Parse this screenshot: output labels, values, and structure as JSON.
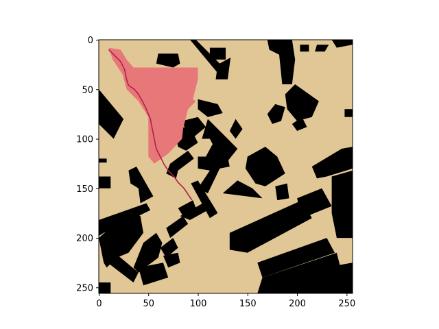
{
  "chart_data": {
    "type": "heatmap",
    "title": "",
    "xlabel": "",
    "ylabel": "",
    "xlim": [
      0,
      256
    ],
    "ylim": [
      256,
      0
    ],
    "x_ticks": [
      0,
      50,
      100,
      150,
      200,
      250
    ],
    "y_ticks": [
      0,
      50,
      100,
      150,
      200,
      250
    ],
    "grid": false,
    "legend": "none",
    "colors": {
      "free_space": "#e2c796",
      "obstacle": "#000000",
      "explored": "#e8777a",
      "path": "#b01e4a"
    },
    "obstacles": [
      {
        "label": "building",
        "cells": [
          [
            112,
            8
          ],
          [
            128,
            8
          ],
          [
            128,
            20
          ],
          [
            112,
            20
          ]
        ]
      },
      {
        "label": "building",
        "cells": [
          [
            133,
            18
          ],
          [
            130,
            40
          ],
          [
            118,
            40
          ],
          [
            120,
            25
          ]
        ]
      },
      {
        "label": "building",
        "cells": [
          [
            60,
            14
          ],
          [
            80,
            14
          ],
          [
            82,
            24
          ],
          [
            75,
            28
          ],
          [
            58,
            24
          ]
        ]
      },
      {
        "label": "building",
        "cells": [
          [
            92,
            0
          ],
          [
            98,
            0
          ],
          [
            126,
            28
          ],
          [
            122,
            36
          ]
        ]
      },
      {
        "label": "building",
        "cells": [
          [
            0,
            50
          ],
          [
            25,
            80
          ],
          [
            15,
            100
          ],
          [
            0,
            85
          ]
        ]
      },
      {
        "label": "building",
        "cells": [
          [
            0,
            138
          ],
          [
            12,
            138
          ],
          [
            12,
            150
          ],
          [
            0,
            150
          ]
        ]
      },
      {
        "label": "building",
        "cells": [
          [
            30,
            132
          ],
          [
            38,
            128
          ],
          [
            55,
            158
          ],
          [
            42,
            165
          ],
          [
            40,
            150
          ],
          [
            32,
            145
          ]
        ]
      },
      {
        "label": "building",
        "cells": [
          [
            0,
            120
          ],
          [
            8,
            120
          ],
          [
            8,
            124
          ],
          [
            0,
            124
          ]
        ]
      },
      {
        "label": "building",
        "cells": [
          [
            0,
            182
          ],
          [
            48,
            165
          ],
          [
            52,
            172
          ],
          [
            5,
            195
          ],
          [
            0,
            198
          ]
        ]
      },
      {
        "label": "building",
        "cells": [
          [
            0,
            200
          ],
          [
            32,
            172
          ],
          [
            42,
            178
          ],
          [
            45,
            195
          ],
          [
            30,
            215
          ],
          [
            18,
            220
          ],
          [
            8,
            230
          ],
          [
            5,
            225
          ]
        ]
      },
      {
        "label": "building",
        "cells": [
          [
            10,
            210
          ],
          [
            40,
            235
          ],
          [
            35,
            245
          ],
          [
            5,
            222
          ]
        ]
      },
      {
        "label": "building",
        "cells": [
          [
            0,
            245
          ],
          [
            12,
            245
          ],
          [
            12,
            256
          ],
          [
            0,
            256
          ]
        ]
      },
      {
        "label": "building",
        "cells": [
          [
            45,
            205
          ],
          [
            58,
            195
          ],
          [
            64,
            205
          ],
          [
            60,
            220
          ],
          [
            40,
            235
          ],
          [
            35,
            230
          ]
        ]
      },
      {
        "label": "building",
        "cells": [
          [
            62,
            210
          ],
          [
            75,
            200
          ],
          [
            80,
            210
          ],
          [
            68,
            220
          ]
        ]
      },
      {
        "label": "building",
        "cells": [
          [
            65,
            218
          ],
          [
            80,
            215
          ],
          [
            82,
            225
          ],
          [
            70,
            230
          ]
        ]
      },
      {
        "label": "building",
        "cells": [
          [
            40,
            230
          ],
          [
            65,
            225
          ],
          [
            70,
            240
          ],
          [
            45,
            248
          ]
        ]
      },
      {
        "label": "building",
        "cells": [
          [
            68,
            190
          ],
          [
            85,
            178
          ],
          [
            90,
            186
          ],
          [
            72,
            200
          ]
        ]
      },
      {
        "label": "building",
        "cells": [
          [
            80,
            170
          ],
          [
            95,
            162
          ],
          [
            98,
            170
          ],
          [
            85,
            178
          ]
        ]
      },
      {
        "label": "building",
        "cells": [
          [
            82,
            178
          ],
          [
            105,
            165
          ],
          [
            110,
            172
          ],
          [
            92,
            182
          ]
        ]
      },
      {
        "label": "building",
        "cells": [
          [
            140,
            142
          ],
          [
            125,
            155
          ],
          [
            165,
            160
          ],
          [
            155,
            150
          ]
        ]
      },
      {
        "label": "building",
        "cells": [
          [
            93,
            145
          ],
          [
            100,
            142
          ],
          [
            120,
            175
          ],
          [
            112,
            180
          ]
        ]
      },
      {
        "label": "building",
        "cells": [
          [
            100,
            118
          ],
          [
            130,
            118
          ],
          [
            132,
            128
          ],
          [
            122,
            130
          ],
          [
            110,
            155
          ],
          [
            100,
            150
          ],
          [
            112,
            132
          ],
          [
            100,
            130
          ]
        ]
      },
      {
        "label": "building",
        "cells": [
          [
            72,
            125
          ],
          [
            90,
            112
          ],
          [
            96,
            120
          ],
          [
            80,
            132
          ],
          [
            78,
            140
          ],
          [
            68,
            135
          ]
        ]
      },
      {
        "label": "building",
        "cells": [
          [
            84,
            82
          ],
          [
            100,
            78
          ],
          [
            108,
            88
          ],
          [
            96,
            98
          ],
          [
            88,
            92
          ]
        ]
      },
      {
        "label": "building",
        "cells": [
          [
            100,
            60
          ],
          [
            120,
            65
          ],
          [
            125,
            74
          ],
          [
            110,
            78
          ],
          [
            100,
            70
          ]
        ]
      },
      {
        "label": "building",
        "cells": [
          [
            110,
            80
          ],
          [
            125,
            95
          ],
          [
            140,
            110
          ],
          [
            128,
            125
          ],
          [
            120,
            115
          ],
          [
            112,
            100
          ],
          [
            104,
            100
          ]
        ]
      },
      {
        "label": "building",
        "cells": [
          [
            138,
            80
          ],
          [
            145,
            90
          ],
          [
            138,
            100
          ],
          [
            132,
            92
          ]
        ]
      },
      {
        "label": "building",
        "cells": [
          [
            115,
            105
          ],
          [
            125,
            112
          ],
          [
            120,
            125
          ],
          [
            108,
            118
          ]
        ]
      },
      {
        "label": "building",
        "cells": [
          [
            78,
            100
          ],
          [
            85,
            88
          ],
          [
            94,
            92
          ],
          [
            100,
            104
          ],
          [
            88,
            112
          ],
          [
            80,
            108
          ]
        ]
      },
      {
        "label": "building",
        "cells": [
          [
            150,
            118
          ],
          [
            168,
            108
          ],
          [
            180,
            118
          ],
          [
            188,
            135
          ],
          [
            168,
            148
          ],
          [
            158,
            145
          ],
          [
            148,
            130
          ]
        ]
      },
      {
        "label": "building",
        "cells": [
          [
            178,
            148
          ],
          [
            190,
            145
          ],
          [
            192,
            160
          ],
          [
            180,
            162
          ]
        ]
      },
      {
        "label": "building",
        "cells": [
          [
            132,
            195
          ],
          [
            205,
            162
          ],
          [
            215,
            180
          ],
          [
            150,
            215
          ],
          [
            132,
            212
          ]
        ]
      },
      {
        "label": "building",
        "cells": [
          [
            200,
            160
          ],
          [
            225,
            150
          ],
          [
            235,
            168
          ],
          [
            205,
            180
          ]
        ]
      },
      {
        "label": "building",
        "cells": [
          [
            160,
            225
          ],
          [
            230,
            200
          ],
          [
            238,
            215
          ],
          [
            165,
            240
          ]
        ]
      },
      {
        "label": "building",
        "cells": [
          [
            165,
            240
          ],
          [
            240,
            215
          ],
          [
            245,
            235
          ],
          [
            238,
            256
          ],
          [
            160,
            256
          ]
        ]
      },
      {
        "label": "building",
        "cells": [
          [
            215,
            128
          ],
          [
            245,
            110
          ],
          [
            256,
            108
          ],
          [
            256,
            130
          ],
          [
            230,
            138
          ],
          [
            220,
            140
          ]
        ]
      },
      {
        "label": "building",
        "cells": [
          [
            235,
            138
          ],
          [
            256,
            132
          ],
          [
            256,
            200
          ],
          [
            240,
            200
          ],
          [
            235,
            175
          ]
        ]
      },
      {
        "label": "building",
        "cells": [
          [
            228,
            230
          ],
          [
            256,
            225
          ],
          [
            256,
            256
          ],
          [
            230,
            256
          ]
        ]
      },
      {
        "label": "building",
        "cells": [
          [
            170,
            75
          ],
          [
            178,
            65
          ],
          [
            188,
            68
          ],
          [
            184,
            82
          ],
          [
            175,
            85
          ]
        ]
      },
      {
        "label": "building",
        "cells": [
          [
            188,
            55
          ],
          [
            198,
            45
          ],
          [
            222,
            62
          ],
          [
            215,
            78
          ],
          [
            200,
            82
          ],
          [
            190,
            70
          ]
        ]
      },
      {
        "label": "building",
        "cells": [
          [
            195,
            85
          ],
          [
            205,
            78
          ],
          [
            210,
            88
          ],
          [
            200,
            92
          ]
        ]
      },
      {
        "label": "building",
        "cells": [
          [
            248,
            70
          ],
          [
            256,
            70
          ],
          [
            256,
            78
          ],
          [
            248,
            78
          ]
        ]
      },
      {
        "label": "building",
        "cells": [
          [
            170,
            0
          ],
          [
            195,
            0
          ],
          [
            198,
            20
          ],
          [
            195,
            45
          ],
          [
            185,
            45
          ],
          [
            182,
            15
          ],
          [
            172,
            10
          ]
        ]
      },
      {
        "label": "building",
        "cells": [
          [
            203,
            5
          ],
          [
            212,
            5
          ],
          [
            212,
            12
          ],
          [
            203,
            12
          ]
        ]
      },
      {
        "label": "building",
        "cells": [
          [
            220,
            5
          ],
          [
            232,
            5
          ],
          [
            228,
            12
          ],
          [
            218,
            12
          ]
        ]
      },
      {
        "label": "building",
        "cells": [
          [
            235,
            0
          ],
          [
            256,
            0
          ],
          [
            256,
            5
          ],
          [
            240,
            8
          ]
        ]
      }
    ],
    "explored_region": [
      [
        10,
        8
      ],
      [
        22,
        10
      ],
      [
        28,
        20
      ],
      [
        35,
        28
      ],
      [
        60,
        28
      ],
      [
        100,
        28
      ],
      [
        100,
        40
      ],
      [
        95,
        60
      ],
      [
        98,
        62
      ],
      [
        90,
        70
      ],
      [
        85,
        90
      ],
      [
        84,
        100
      ],
      [
        70,
        115
      ],
      [
        56,
        125
      ],
      [
        50,
        118
      ],
      [
        50,
        78
      ],
      [
        40,
        62
      ],
      [
        28,
        50
      ],
      [
        24,
        35
      ],
      [
        14,
        20
      ]
    ],
    "path": [
      [
        10,
        10
      ],
      [
        16,
        16
      ],
      [
        22,
        22
      ],
      [
        26,
        30
      ],
      [
        28,
        40
      ],
      [
        30,
        46
      ],
      [
        36,
        50
      ],
      [
        40,
        55
      ],
      [
        44,
        62
      ],
      [
        48,
        70
      ],
      [
        52,
        80
      ],
      [
        54,
        90
      ],
      [
        56,
        100
      ],
      [
        58,
        110
      ],
      [
        62,
        118
      ],
      [
        66,
        126
      ],
      [
        70,
        132
      ],
      [
        76,
        138
      ],
      [
        80,
        144
      ],
      [
        86,
        150
      ],
      [
        90,
        156
      ],
      [
        94,
        162
      ]
    ]
  }
}
